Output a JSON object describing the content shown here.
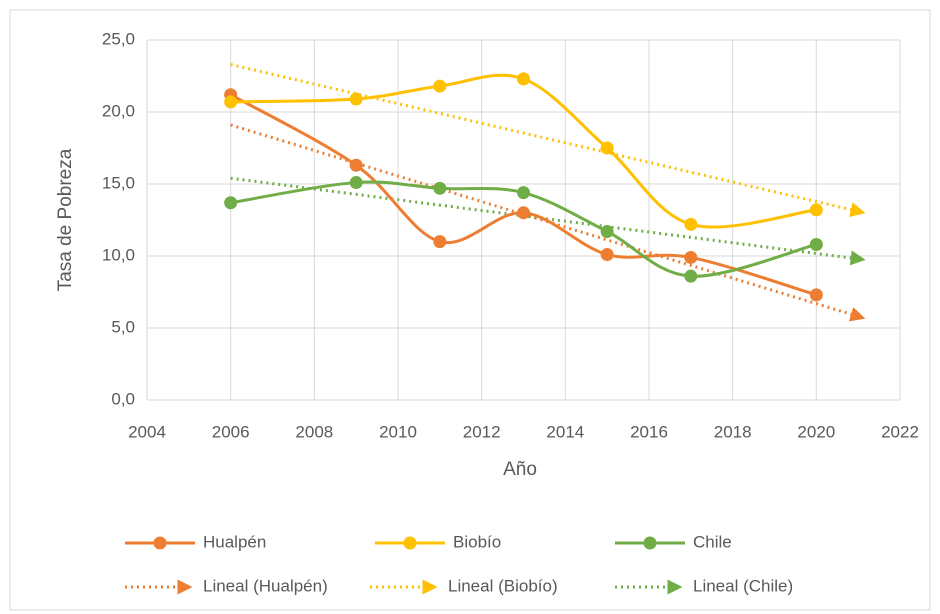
{
  "chart_data": {
    "type": "line",
    "smooth": true,
    "x_label": "Año",
    "y_label": "Tasa de Pobreza",
    "x": [
      2006,
      2009,
      2011,
      2013,
      2015,
      2017,
      2020
    ],
    "series": [
      {
        "name": "Hualpén",
        "color": "#ED7D31",
        "values": [
          21.2,
          16.3,
          11.0,
          13.0,
          10.1,
          9.9,
          7.3
        ]
      },
      {
        "name": "Biobío",
        "color": "#FFC000",
        "values": [
          20.7,
          20.9,
          21.8,
          22.3,
          17.5,
          12.2,
          13.2
        ]
      },
      {
        "name": "Chile",
        "color": "#70AD47",
        "values": [
          13.7,
          15.1,
          14.7,
          14.4,
          11.7,
          8.6,
          10.8
        ]
      }
    ],
    "trendlines": [
      {
        "name": "Lineal (Hualpén)",
        "color": "#ED7D31",
        "x": [
          2006,
          2021
        ],
        "values": [
          19.1,
          5.8
        ]
      },
      {
        "name": "Lineal (Biobío)",
        "color": "#FFC000",
        "x": [
          2006,
          2021
        ],
        "values": [
          23.3,
          13.1
        ]
      },
      {
        "name": "Lineal (Chile)",
        "color": "#70AD47",
        "x": [
          2006,
          2021
        ],
        "values": [
          15.4,
          9.8
        ]
      }
    ],
    "xlim": [
      2004,
      2022
    ],
    "xticks": [
      2004,
      2006,
      2008,
      2010,
      2012,
      2014,
      2016,
      2018,
      2020,
      2022
    ],
    "ylim": [
      0,
      25
    ],
    "yticks": [
      {
        "value": 0,
        "label": "0,0"
      },
      {
        "value": 5,
        "label": "5,0"
      },
      {
        "value": 10,
        "label": "10,0"
      },
      {
        "value": 15,
        "label": "15,0"
      },
      {
        "value": 20,
        "label": "20,0"
      },
      {
        "value": 25,
        "label": "25,0"
      }
    ],
    "grid": true,
    "legend": "bottom"
  }
}
